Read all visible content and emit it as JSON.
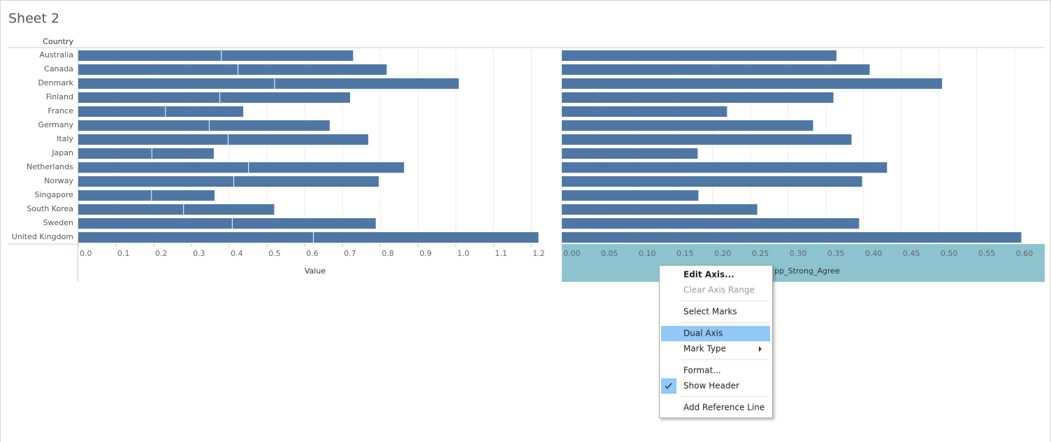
{
  "sheet_title": "Sheet 2",
  "chart_data": [
    {
      "type": "stacked-bar-horizontal",
      "y_label": "Country",
      "x_label": "Value",
      "categories": [
        "Australia",
        "Canada",
        "Denmark",
        "Finland",
        "France",
        "Germany",
        "Italy",
        "Japan",
        "Netherlands",
        "Norway",
        "Singapore",
        "South Korea",
        "Sweden",
        "United Kingdom"
      ],
      "series": [
        {
          "color": "#4e77a6",
          "values": [
            0.378,
            0.422,
            0.519,
            0.374,
            0.23,
            0.346,
            0.396,
            0.194,
            0.45,
            0.411,
            0.193,
            0.278,
            0.407,
            0.622
          ]
        },
        {
          "color": "#4e77a6",
          "values": [
            0.35,
            0.395,
            0.489,
            0.346,
            0.207,
            0.32,
            0.372,
            0.165,
            0.413,
            0.385,
            0.168,
            0.241,
            0.381,
            0.597
          ]
        }
      ],
      "xlim": [
        0,
        1.255
      ],
      "xticks": [
        {
          "value": 0,
          "label": "0.0"
        },
        0.1,
        0.2,
        0.3,
        0.4,
        0.5,
        0.6,
        0.7,
        0.8,
        0.9,
        {
          "value": 1,
          "label": "1.0"
        },
        1.1,
        1.2
      ],
      "grid": true
    },
    {
      "type": "bar-horizontal",
      "x_label": "pp_Strong_Agree",
      "color": "#4e77a6",
      "values": [
        0.364,
        0.408,
        0.504,
        0.36,
        0.219,
        0.333,
        0.384,
        0.18,
        0.431,
        0.398,
        0.181,
        0.259,
        0.394,
        0.609
      ],
      "xlim": [
        0,
        0.64
      ],
      "xticks": [
        {
          "value": 0,
          "label": "0.00"
        },
        0.05,
        {
          "value": 0.1,
          "label": "0.10"
        },
        0.15,
        {
          "value": 0.2,
          "label": "0.20"
        },
        0.25,
        {
          "value": 0.3,
          "label": "0.30"
        },
        0.35,
        {
          "value": 0.4,
          "label": "0.40"
        },
        0.45,
        {
          "value": 0.5,
          "label": "0.50"
        },
        0.55,
        {
          "value": 0.6,
          "label": "0.60"
        }
      ],
      "grid": true,
      "axis_selected": true
    }
  ],
  "menu": {
    "groups": [
      [
        {
          "label": "Edit Axis...",
          "bold": true
        },
        {
          "label": "Clear Axis Range",
          "disabled": true
        }
      ],
      [
        {
          "label": "Select Marks"
        }
      ],
      [
        {
          "label": "Dual Axis",
          "highlighted": true
        },
        {
          "label": "Mark Type",
          "submenu": true
        }
      ],
      [
        {
          "label": "Format..."
        },
        {
          "label": "Show Header",
          "checked": true
        }
      ],
      [
        {
          "label": "Add Reference Line"
        }
      ]
    ]
  }
}
